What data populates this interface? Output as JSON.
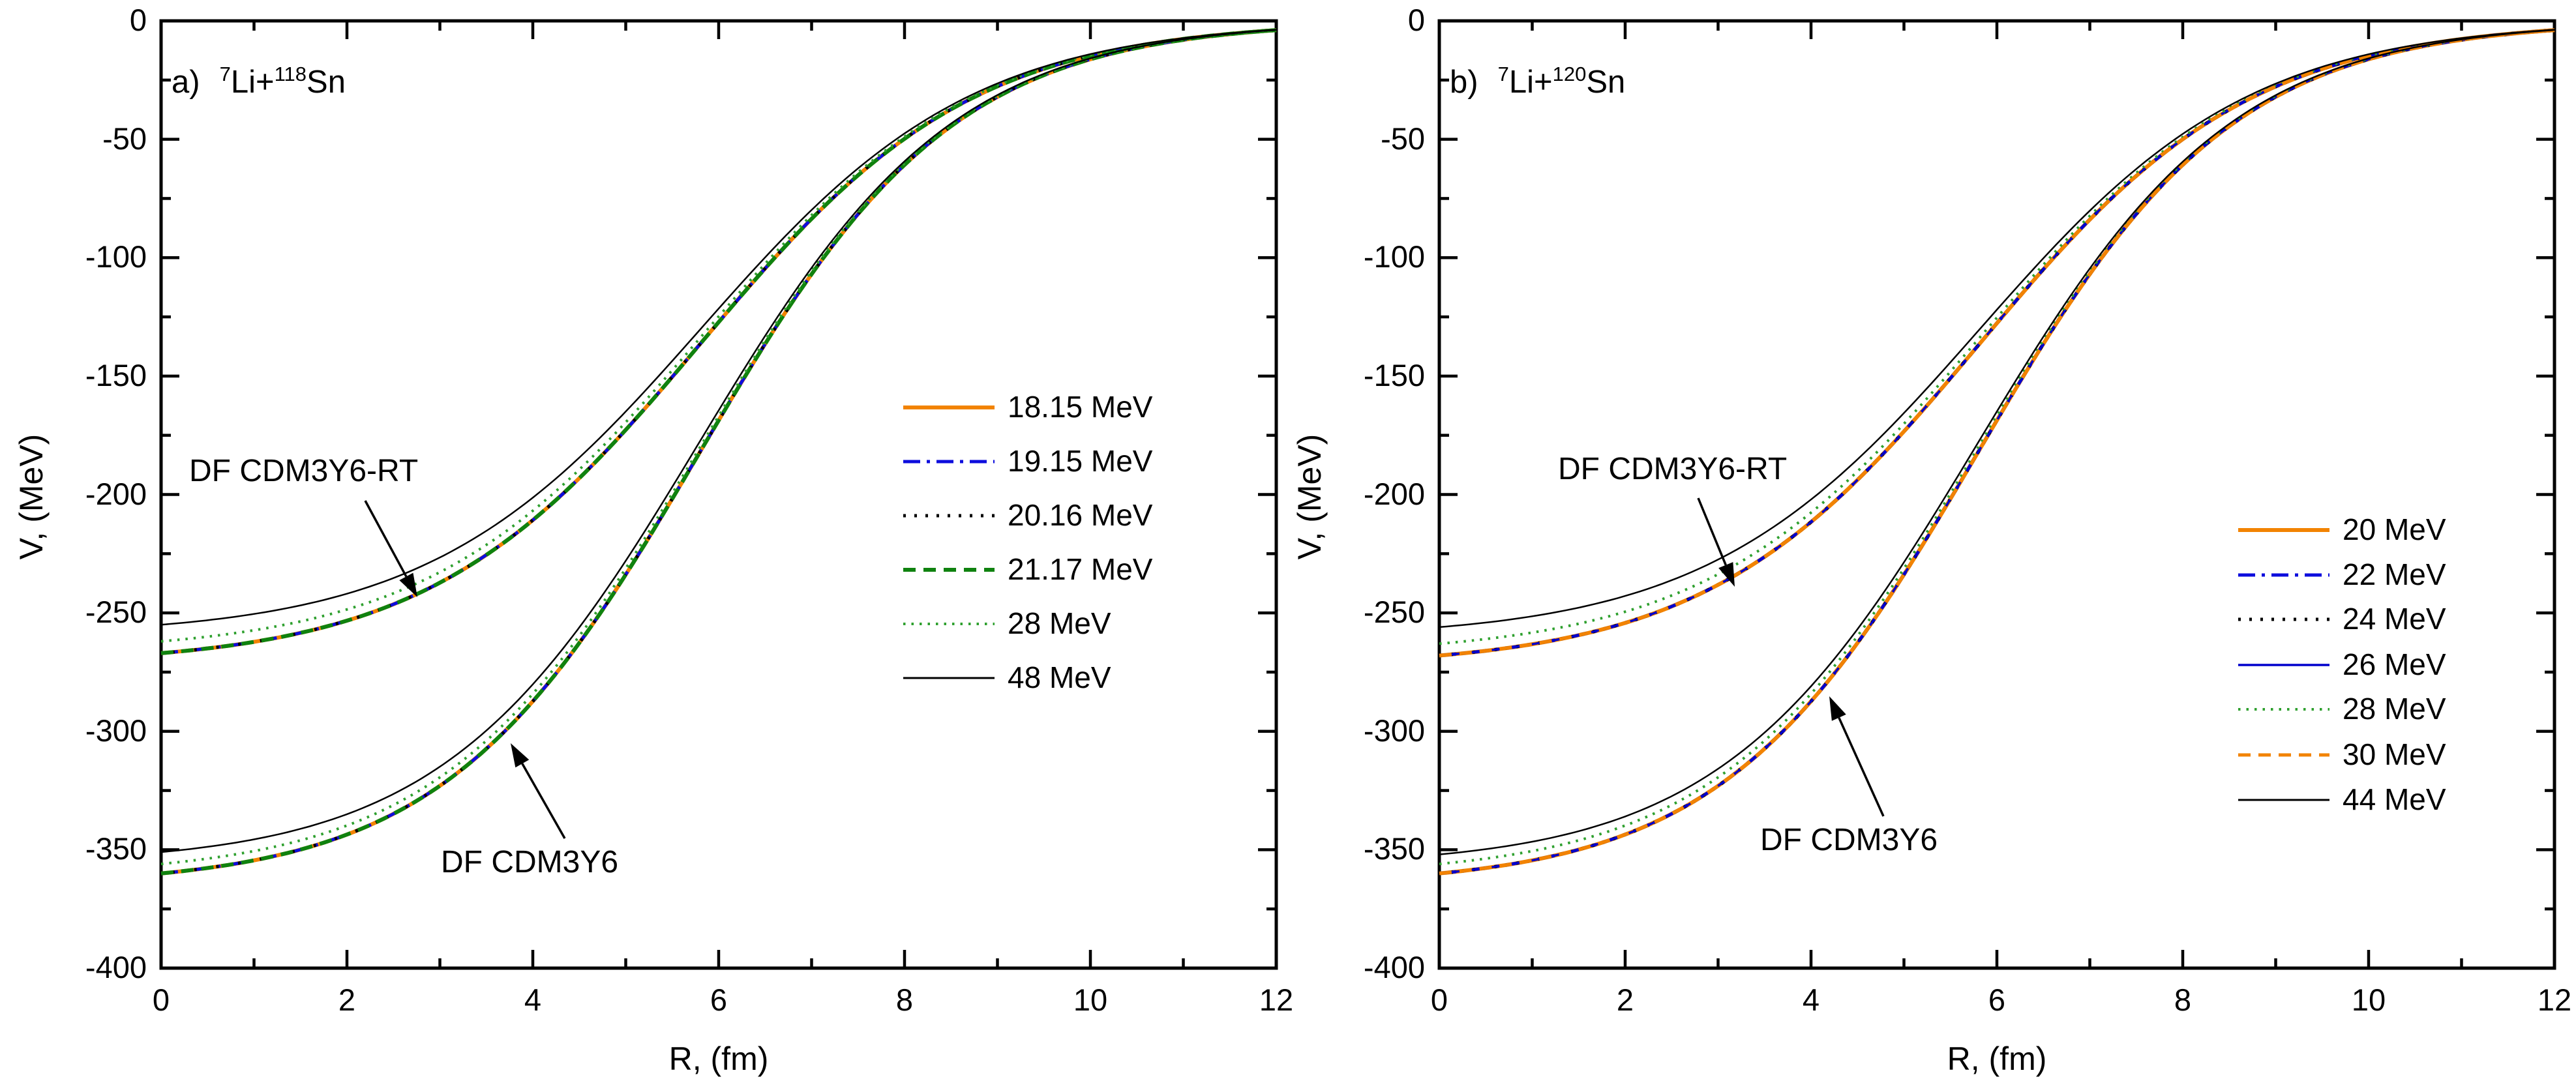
{
  "chart_data": {
    "type": "line",
    "figure_description": "Real folded optical potentials V(R) for 7Li scattering on Sn isotopes, two potential families (DF CDM3Y6-RT and DF CDM3Y6) at several bombarding energies",
    "panels": [
      {
        "title": {
          "prefix": "a)",
          "sup1": "7",
          "mid": "Li+",
          "sup2": "118",
          "end": "Sn"
        },
        "xlabel": "R, (fm)",
        "ylabel": "V, (MeV)",
        "xlim": [
          0,
          12
        ],
        "ylim": [
          -400,
          0
        ],
        "x_major_ticks": [
          "0",
          "2",
          "4",
          "6",
          "8",
          "10",
          "12"
        ],
        "x_minor_ticks": [
          1,
          3,
          5,
          7,
          9,
          11
        ],
        "y_major_ticks": [
          "0",
          "-50",
          "-100",
          "-150",
          "-200",
          "-250",
          "-300",
          "-350",
          "-400"
        ],
        "y_minor_ticks": [
          -25,
          -75,
          -125,
          -175,
          -225,
          -275,
          -325,
          -375
        ],
        "grid": false,
        "legend_position": "center-right",
        "annotations": [
          "DF CDM3Y6-RT",
          "DF CDM3Y6"
        ],
        "families": [
          {
            "name": "DF CDM3Y6-RT",
            "model": {
              "R0": 5.81,
              "a": 1.464
            },
            "R": [
              0,
              0.5,
              1,
              1.5,
              2,
              2.5,
              3,
              3.5,
              4,
              4.5,
              5,
              5.5,
              6,
              6.5,
              7,
              7.5,
              8,
              8.5,
              9,
              9.5,
              10,
              10.5,
              11,
              11.5,
              12
            ],
            "V_bundle": [
              -267,
              -265,
              -262.2,
              -258.4,
              -253.3,
              -246.4,
              -237.2,
              -225.5,
              -210.8,
              -193.1,
              -172.7,
              -150.4,
              -127.2,
              -104.6,
              -83.6,
              -65.2,
              -49.8,
              -37.4,
              -27.7,
              -20.3,
              -14.7,
              -10.6,
              -7.6,
              -5.5,
              -3.9
            ]
          },
          {
            "name": "DF CDM3Y6",
            "model": {
              "R0": 5.79,
              "a": 1.372
            },
            "R": [
              0,
              0.5,
              1,
              1.5,
              2,
              2.5,
              3,
              3.5,
              4,
              4.5,
              5,
              5.5,
              6,
              6.5,
              7,
              7.5,
              8,
              8.5,
              9,
              9.5,
              10,
              10.5,
              11,
              11.5,
              12
            ],
            "V_bundle": [
              -360,
              -357.7,
              -354.5,
              -349.9,
              -343.6,
              -334.9,
              -323,
              -307.4,
              -287.4,
              -262.7,
              -233.8,
              -201.9,
              -168.7,
              -136.5,
              -107,
              -81.6,
              -60.8,
              -44.5,
              -32.1,
              -22.9,
              -16.2,
              -11.4,
              -8,
              -5.6,
              -3.9
            ]
          }
        ],
        "series": [
          {
            "label": "18.15 MeV",
            "color": "#F28300",
            "dash": "solid",
            "width": 6,
            "depths": [
              267,
              360
            ]
          },
          {
            "label": "19.15 MeV",
            "color": "#0D0DDD",
            "dash": "dashdot",
            "width": 5,
            "depths": [
              267,
              360
            ]
          },
          {
            "label": "20.16 MeV",
            "color": "#000000",
            "dash": "dot",
            "width": 5,
            "depths": [
              267,
              360
            ]
          },
          {
            "label": "21.17 MeV",
            "color": "#0F820F",
            "dash": "dash",
            "width": 6,
            "depths": [
              267,
              360
            ]
          },
          {
            "label": "28 MeV",
            "color": "#2FA02F",
            "dash": "finedot",
            "width": 4,
            "depths": [
              262,
              356
            ]
          },
          {
            "label": "48 MeV",
            "color": "#000000",
            "dash": "solid",
            "width": 2.5,
            "depths": [
              255,
              351
            ]
          }
        ]
      },
      {
        "title": {
          "prefix": "b)",
          "sup1": "7",
          "mid": "Li+",
          "sup2": "120",
          "end": "Sn"
        },
        "xlabel": "R, (fm)",
        "ylabel": "V, (MeV)",
        "xlim": [
          0,
          12
        ],
        "ylim": [
          -400,
          0
        ],
        "x_major_ticks": [
          "0",
          "2",
          "4",
          "6",
          "8",
          "10",
          "12"
        ],
        "x_minor_ticks": [
          1,
          3,
          5,
          7,
          9,
          11
        ],
        "y_major_ticks": [
          "0",
          "-50",
          "-100",
          "-150",
          "-200",
          "-250",
          "-300",
          "-350",
          "-400"
        ],
        "y_minor_ticks": [
          -25,
          -75,
          -125,
          -175,
          -225,
          -275,
          -325,
          -375
        ],
        "grid": false,
        "legend_position": "center-right",
        "annotations": [
          "DF CDM3Y6-RT",
          "DF CDM3Y6"
        ],
        "families": [
          {
            "name": "DF CDM3Y6-RT",
            "model": {
              "R0": 5.81,
              "a": 1.464
            },
            "R": [
              0,
              0.5,
              1,
              1.5,
              2,
              2.5,
              3,
              3.5,
              4,
              4.5,
              5,
              5.5,
              6,
              6.5,
              7,
              7.5,
              8,
              8.5,
              9,
              9.5,
              10,
              10.5,
              11,
              11.5,
              12
            ],
            "V_bundle": [
              -268,
              -266,
              -263.2,
              -259.4,
              -254.3,
              -247.3,
              -238.1,
              -226.4,
              -211.6,
              -193.9,
              -173.4,
              -150.9,
              -127.7,
              -105,
              -83.9,
              -65.5,
              -50,
              -37.5,
              -27.8,
              -20.3,
              -14.8,
              -10.7,
              -7.7,
              -5.5,
              -3.9
            ]
          },
          {
            "name": "DF CDM3Y6",
            "model": {
              "R0": 5.79,
              "a": 1.372
            },
            "R": [
              0,
              0.5,
              1,
              1.5,
              2,
              2.5,
              3,
              3.5,
              4,
              4.5,
              5,
              5.5,
              6,
              6.5,
              7,
              7.5,
              8,
              8.5,
              9,
              9.5,
              10,
              10.5,
              11,
              11.5,
              12
            ],
            "V_bundle": [
              -360,
              -357.7,
              -354.5,
              -349.9,
              -343.6,
              -334.9,
              -323,
              -307.4,
              -287.4,
              -262.7,
              -233.8,
              -201.9,
              -168.7,
              -136.5,
              -107,
              -81.6,
              -60.8,
              -44.5,
              -32.1,
              -22.9,
              -16.2,
              -11.4,
              -8,
              -5.6,
              -3.9
            ]
          }
        ],
        "series": [
          {
            "label": "20 MeV",
            "color": "#F28300",
            "dash": "solid",
            "width": 6,
            "depths": [
              268,
              360
            ]
          },
          {
            "label": "22 MeV",
            "color": "#0D0DDD",
            "dash": "dashdot",
            "width": 5,
            "depths": [
              268,
              360
            ]
          },
          {
            "label": "24 MeV",
            "color": "#000000",
            "dash": "dot",
            "width": 5,
            "depths": [
              268,
              360
            ]
          },
          {
            "label": "26 MeV",
            "color": "#0000CC",
            "dash": "solid",
            "width": 3.5,
            "depths": [
              268,
              360
            ]
          },
          {
            "label": "28 MeV",
            "color": "#2FA02F",
            "dash": "finedot",
            "width": 4,
            "depths": [
              263,
              356
            ]
          },
          {
            "label": "30 MeV",
            "color": "#F28300",
            "dash": "dash",
            "width": 5,
            "depths": [
              268,
              360
            ]
          },
          {
            "label": "44 MeV",
            "color": "#000000",
            "dash": "solid",
            "width": 2.5,
            "depths": [
              256,
              352
            ]
          }
        ]
      }
    ]
  }
}
